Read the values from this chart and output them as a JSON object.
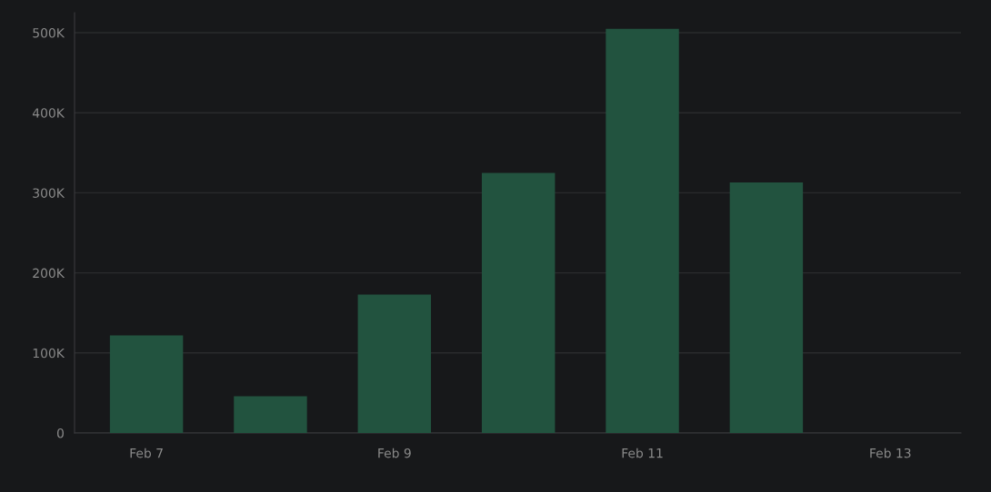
{
  "chart_data": {
    "type": "bar",
    "categories": [
      "Feb 7",
      null,
      "Feb 9",
      null,
      "Feb 11",
      null,
      "Feb 13"
    ],
    "values": [
      122000,
      46000,
      173000,
      325000,
      505000,
      313000,
      0
    ],
    "color": "#22533f",
    "ylim": [
      0,
      525000
    ],
    "yticks": [
      0,
      {
        "value": 100000,
        "label": "100K"
      },
      {
        "value": 200000,
        "label": "200K"
      },
      {
        "value": 300000,
        "label": "300K"
      },
      {
        "value": 400000,
        "label": "400K"
      },
      {
        "value": 500000,
        "label": "500K"
      }
    ],
    "grid": "y"
  }
}
